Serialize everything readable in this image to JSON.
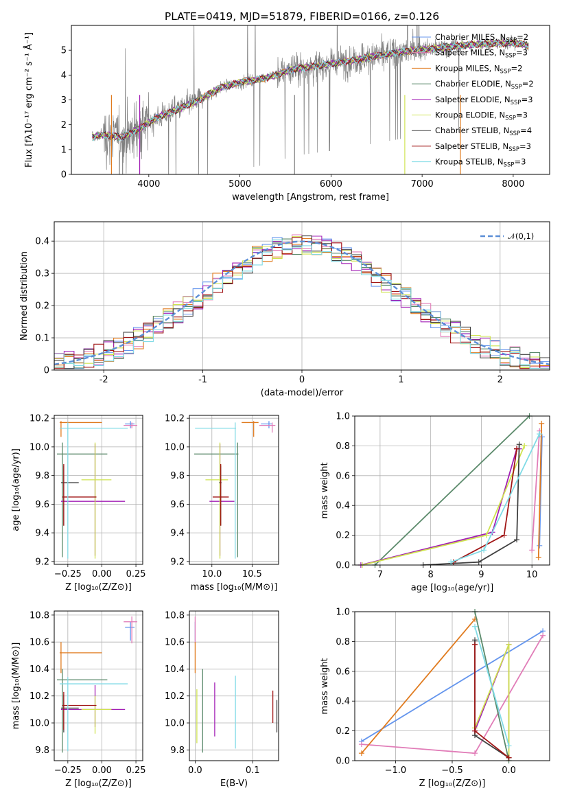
{
  "figure": {
    "title": "PLATE=0419, MJD=51879, FIBERID=0166, z=0.126"
  },
  "chart_data": [
    {
      "id": "spectrum",
      "type": "line",
      "xlabel": "wavelength [Angstrom, rest frame]",
      "ylabel": "Flux [fλ10⁻¹⁷ erg cm⁻² s⁻¹ Å⁻¹]",
      "xlim": [
        3150,
        8400
      ],
      "ylim": [
        0,
        6
      ],
      "xticks": [
        4000,
        5000,
        6000,
        7000,
        8000
      ],
      "yticks": [
        0,
        1,
        2,
        3,
        4,
        5
      ],
      "grid": false,
      "legend_position": "top-right",
      "data_range": [
        3380,
        8170
      ],
      "model_continuum": {
        "x": [
          3380,
          3500,
          3700,
          3900,
          4100,
          4300,
          4500,
          4800,
          5000,
          5300,
          5600,
          6000,
          6400,
          6800,
          7200,
          7600,
          8000,
          8170
        ],
        "y": [
          1.5,
          1.6,
          1.5,
          1.85,
          2.3,
          2.6,
          2.9,
          3.5,
          3.7,
          3.9,
          4.25,
          4.45,
          4.7,
          4.95,
          5.1,
          5.25,
          5.3,
          5.2
        ]
      },
      "series": [
        {
          "name": "Chabrier MILES, N_SSP=2",
          "color": "#6495ed"
        },
        {
          "name": "Salpeter MILES, N_SSP=3",
          "color": "#e17db8"
        },
        {
          "name": "Kroupa MILES, N_SSP=2",
          "color": "#e07b1f"
        },
        {
          "name": "Chabrier ELODIE, N_SSP=2",
          "color": "#5b8a6b"
        },
        {
          "name": "Salpeter ELODIE, N_SSP=3",
          "color": "#a21fb5"
        },
        {
          "name": "Kroupa ELODIE, N_SSP=3",
          "color": "#cfe34f"
        },
        {
          "name": "Chabrier STELIB, N_SSP=4",
          "color": "#404040"
        },
        {
          "name": "Salpeter STELIB, N_SSP=3",
          "color": "#a11616"
        },
        {
          "name": "Kroupa STELIB, N_SSP=3",
          "color": "#80dbe6"
        }
      ],
      "data_color": "#808080"
    },
    {
      "id": "residuals",
      "type": "histogram",
      "xlabel": "(data-model)/error",
      "ylabel": "Normed distribution",
      "xlim": [
        -2.5,
        2.5
      ],
      "ylim": [
        0,
        0.46
      ],
      "xticks": [
        -2,
        -1,
        0,
        1,
        2
      ],
      "yticks": [
        0.0,
        0.1,
        0.2,
        0.3,
        0.4
      ],
      "grid": true,
      "legend": "𝒩(0,1)",
      "legend_position": "top-right",
      "reference_color": "#5b8ed6"
    },
    {
      "id": "age-vs-Z",
      "type": "errorbar",
      "xlabel": "Z [log₁₀(Z/Z⊙)]",
      "ylabel": "age  [log₁₀(age/yr)]",
      "xlim": [
        -0.35,
        0.3
      ],
      "ylim": [
        9.18,
        10.22
      ],
      "xticks": [
        -0.25,
        0.0,
        0.25
      ],
      "ytick_labels": [
        "9.2",
        "9.4",
        "9.6",
        "9.8",
        "10.0",
        "10.2"
      ],
      "xtick_labels": [
        "−0.25",
        "0.00",
        "0.25"
      ],
      "points": [
        {
          "series": 0,
          "x": 0.21,
          "xerr": [
            0.04,
            0.03
          ],
          "y": 10.16,
          "yerr": [
            0.03,
            0.02
          ]
        },
        {
          "series": 1,
          "x": 0.22,
          "xerr": [
            0.06,
            0.04
          ],
          "y": 10.15,
          "yerr": [
            0.02,
            0.02
          ]
        },
        {
          "series": 2,
          "x": -0.3,
          "xerr": [
            0.01,
            0.3
          ],
          "y": 10.17,
          "yerr": [
            0.1,
            0.01
          ]
        },
        {
          "series": 3,
          "x": -0.29,
          "xerr": [
            0.04,
            0.33
          ],
          "y": 9.95,
          "yerr": [
            0.72,
            0.08
          ]
        },
        {
          "series": 4,
          "x": -0.05,
          "xerr": [
            0.25,
            0.22
          ],
          "y": 9.62,
          "yerr": [
            0.38,
            0.4
          ]
        },
        {
          "series": 5,
          "x": -0.05,
          "xerr": [
            0.1,
            0.12
          ],
          "y": 9.77,
          "yerr": [
            0.55,
            0.26
          ]
        },
        {
          "series": 6,
          "x": -0.28,
          "xerr": [
            0.02,
            0.11
          ],
          "y": 9.75,
          "yerr": [
            0.3,
            0.12
          ]
        },
        {
          "series": 7,
          "x": -0.28,
          "xerr": [
            0.01,
            0.24
          ],
          "y": 9.65,
          "yerr": [
            0.2,
            0.23
          ]
        },
        {
          "series": 8,
          "x": -0.25,
          "xerr": [
            0.06,
            0.44
          ],
          "y": 10.13,
          "yerr": [
            0.91,
            0.04
          ]
        }
      ]
    },
    {
      "id": "age-vs-mass",
      "type": "errorbar",
      "xlabel": "mass [log₁₀(M/M⊙)]",
      "ylabel": "",
      "xlim": [
        9.72,
        10.83
      ],
      "ylim": [
        9.18,
        10.22
      ],
      "xticks": [
        10.0,
        10.5
      ],
      "xtick_labels": [
        "10.0",
        "10.5"
      ],
      "ytick_labels": [
        "9.2",
        "9.4",
        "9.6",
        "9.8",
        "10.0",
        "10.2"
      ],
      "points": [
        {
          "series": 0,
          "x": 10.71,
          "xerr": [
            0.1,
            0.04
          ],
          "y": 10.16,
          "yerr": [
            0.03,
            0.02
          ]
        },
        {
          "series": 1,
          "x": 10.75,
          "xerr": [
            0.16,
            0.04
          ],
          "y": 10.15,
          "yerr": [
            0.05,
            0.02
          ]
        },
        {
          "series": 2,
          "x": 10.52,
          "xerr": [
            0.15,
            0.06
          ],
          "y": 10.17,
          "yerr": [
            0.1,
            0.01
          ]
        },
        {
          "series": 3,
          "x": 10.32,
          "xerr": [
            0.54,
            0.01
          ],
          "y": 9.95,
          "yerr": [
            0.72,
            0.08
          ]
        },
        {
          "series": 4,
          "x": 10.1,
          "xerr": [
            0.13,
            0.18
          ],
          "y": 9.62,
          "yerr": [
            0.38,
            0.4
          ]
        },
        {
          "series": 5,
          "x": 10.1,
          "xerr": [
            0.18,
            0.1
          ],
          "y": 9.77,
          "yerr": [
            0.55,
            0.26
          ]
        },
        {
          "series": 6,
          "x": 10.11,
          "xerr": [
            0.02,
            0.01
          ],
          "y": 9.75,
          "yerr": [
            0.3,
            0.12
          ]
        },
        {
          "series": 7,
          "x": 10.11,
          "xerr": [
            0.1,
            0.1
          ],
          "y": 9.65,
          "yerr": [
            0.2,
            0.23
          ]
        },
        {
          "series": 8,
          "x": 10.29,
          "xerr": [
            0.5,
            0.01
          ],
          "y": 10.13,
          "yerr": [
            0.91,
            0.04
          ]
        }
      ]
    },
    {
      "id": "weight-vs-age",
      "type": "line",
      "xlabel": "age  [log₁₀(age/yr)]",
      "ylabel": "mass weight",
      "xlim": [
        6.5,
        10.35
      ],
      "ylim": [
        0,
        1
      ],
      "xticks": [
        7,
        8,
        9,
        10
      ],
      "xtick_labels": [
        "7",
        "8",
        "9",
        "10"
      ],
      "ytick_labels": [
        "0.0",
        "0.2",
        "0.4",
        "0.6",
        "0.8",
        "1.0"
      ],
      "series_lines": [
        {
          "series": 0,
          "x": [
            10.2,
            10.15
          ],
          "y": [
            0.86,
            0.13
          ]
        },
        {
          "series": 1,
          "x": [
            10.15,
            10.0
          ],
          "y": [
            0.9,
            0.1
          ]
        },
        {
          "series": 2,
          "x": [
            10.19,
            10.13
          ],
          "y": [
            0.95,
            0.05
          ]
        },
        {
          "series": 3,
          "x": [
            6.9,
            9.95
          ],
          "y": [
            0.0,
            1.0
          ]
        },
        {
          "series": 4,
          "x": [
            6.62,
            9.22,
            9.7,
            9.75
          ],
          "y": [
            0.0,
            0.22,
            0.78,
            0.78
          ]
        },
        {
          "series": 5,
          "x": [
            6.65,
            9.1,
            9.85,
            9.85
          ],
          "y": [
            0.0,
            0.2,
            0.8,
            0.8
          ]
        },
        {
          "series": 6,
          "x": [
            7.85,
            8.95,
            9.7,
            9.75
          ],
          "y": [
            0.0,
            0.02,
            0.17,
            0.81
          ]
        },
        {
          "series": 7,
          "x": [
            8.45,
            9.45,
            9.7,
            9.7
          ],
          "y": [
            0.02,
            0.2,
            0.78,
            0.78
          ]
        },
        {
          "series": 8,
          "x": [
            8.4,
            9.05,
            10.15,
            10.15
          ],
          "y": [
            0.02,
            0.1,
            0.88,
            0.88
          ]
        }
      ]
    },
    {
      "id": "mass-vs-Z",
      "type": "errorbar",
      "xlabel": "Z [log₁₀(Z/Z⊙)]",
      "ylabel": "mass [log₁₀(M/M⊙)]",
      "xlim": [
        -0.35,
        0.3
      ],
      "ylim": [
        9.72,
        10.83
      ],
      "xticks": [
        -0.25,
        0.0,
        0.25
      ],
      "xtick_labels": [
        "−0.25",
        "0.00",
        "0.25"
      ],
      "ytick_labels": [
        "9.8",
        "10.0",
        "10.2",
        "10.4",
        "10.6",
        "10.8"
      ],
      "points": [
        {
          "series": 0,
          "x": 0.21,
          "xerr": [
            0.04,
            0.03
          ],
          "y": 10.71,
          "yerr": [
            0.1,
            0.04
          ]
        },
        {
          "series": 1,
          "x": 0.22,
          "xerr": [
            0.06,
            0.04
          ],
          "y": 10.75,
          "yerr": [
            0.16,
            0.04
          ]
        },
        {
          "series": 2,
          "x": -0.3,
          "xerr": [
            0.01,
            0.3
          ],
          "y": 10.52,
          "yerr": [
            0.15,
            0.08
          ]
        },
        {
          "series": 3,
          "x": -0.29,
          "xerr": [
            0.04,
            0.33
          ],
          "y": 10.32,
          "yerr": [
            0.54,
            0.08
          ]
        },
        {
          "series": 4,
          "x": -0.05,
          "xerr": [
            0.25,
            0.22
          ],
          "y": 10.1,
          "yerr": [
            0.13,
            0.18
          ]
        },
        {
          "series": 5,
          "x": -0.05,
          "xerr": [
            0.1,
            0.12
          ],
          "y": 10.1,
          "yerr": [
            0.18,
            0.1
          ]
        },
        {
          "series": 6,
          "x": -0.28,
          "xerr": [
            0.02,
            0.11
          ],
          "y": 10.11,
          "yerr": [
            0.18,
            0.1
          ]
        },
        {
          "series": 7,
          "x": -0.28,
          "xerr": [
            0.01,
            0.24
          ],
          "y": 10.13,
          "yerr": [
            0.18,
            0.1
          ]
        },
        {
          "series": 8,
          "x": -0.25,
          "xerr": [
            0.06,
            0.44
          ],
          "y": 10.29,
          "yerr": [
            0.5,
            0.05
          ]
        }
      ]
    },
    {
      "id": "mass-vs-ebv",
      "type": "errorbar",
      "xlabel": "E(B-V)",
      "ylabel": "",
      "xlim": [
        -0.01,
        0.145
      ],
      "ylim": [
        9.72,
        10.83
      ],
      "xticks": [
        0.0,
        0.1
      ],
      "xtick_labels": [
        "0.0",
        "0.1"
      ],
      "ytick_labels": [
        "9.8",
        "10.0",
        "10.2",
        "10.4",
        "10.6",
        "10.8"
      ],
      "points": [
        {
          "series": 0,
          "x": 0.0,
          "y": 10.71,
          "yerr": [
            0.1,
            0.04
          ]
        },
        {
          "series": 1,
          "x": 0.0,
          "y": 10.75,
          "yerr": [
            0.16,
            0.04
          ]
        },
        {
          "series": 2,
          "x": 0.0,
          "y": 10.52,
          "yerr": [
            0.15,
            0.08
          ]
        },
        {
          "series": 3,
          "x": 0.013,
          "y": 10.32,
          "yerr": [
            0.54,
            0.08
          ]
        },
        {
          "series": 4,
          "x": 0.034,
          "y": 10.1,
          "yerr": [
            0.2,
            0.2
          ]
        },
        {
          "series": 5,
          "x": 0.003,
          "y": 10.1,
          "yerr": [
            0.25,
            0.15
          ]
        },
        {
          "series": 6,
          "x": 0.142,
          "y": 10.05,
          "yerr": [
            0.12,
            0.12
          ]
        },
        {
          "series": 7,
          "x": 0.135,
          "y": 10.12,
          "yerr": [
            0.12,
            0.12
          ]
        },
        {
          "series": 8,
          "x": 0.07,
          "y": 10.05,
          "yerr": [
            0.24,
            0.3
          ]
        }
      ]
    },
    {
      "id": "weight-vs-Z",
      "type": "line",
      "xlabel": "Z [log₁₀(Z/Z⊙)]",
      "ylabel": "mass weight",
      "xlim": [
        -1.36,
        0.36
      ],
      "ylim": [
        0,
        1
      ],
      "xticks": [
        -1.0,
        -0.5,
        0.0
      ],
      "xtick_labels": [
        "−1.0",
        "−0.5",
        "0.0"
      ],
      "ytick_labels": [
        "0.0",
        "0.2",
        "0.4",
        "0.6",
        "0.8",
        "1.0"
      ],
      "series_lines": [
        {
          "series": 0,
          "x": [
            -1.3,
            0.3
          ],
          "y": [
            0.13,
            0.87
          ]
        },
        {
          "series": 1,
          "x": [
            -1.3,
            -0.3,
            0.3
          ],
          "y": [
            0.11,
            0.05,
            0.84
          ]
        },
        {
          "series": 2,
          "x": [
            -1.3,
            -0.3
          ],
          "y": [
            0.05,
            0.95
          ]
        },
        {
          "series": 3,
          "x": [
            -0.3,
            0.0
          ],
          "y": [
            1.0,
            0.0
          ]
        },
        {
          "series": 4,
          "x": [
            -0.3,
            0.0,
            0.0
          ],
          "y": [
            0.2,
            0.78,
            0.02
          ]
        },
        {
          "series": 5,
          "x": [
            -0.3,
            0.0,
            0.0
          ],
          "y": [
            0.22,
            0.78,
            0.02
          ]
        },
        {
          "series": 6,
          "x": [
            -0.3,
            -0.3,
            0.0
          ],
          "y": [
            0.81,
            0.17,
            0.02
          ]
        },
        {
          "series": 7,
          "x": [
            -0.3,
            -0.3,
            0.0
          ],
          "y": [
            0.78,
            0.2,
            0.02
          ]
        },
        {
          "series": 8,
          "x": [
            -0.3,
            0.0
          ],
          "y": [
            0.9,
            0.1
          ]
        }
      ]
    }
  ]
}
